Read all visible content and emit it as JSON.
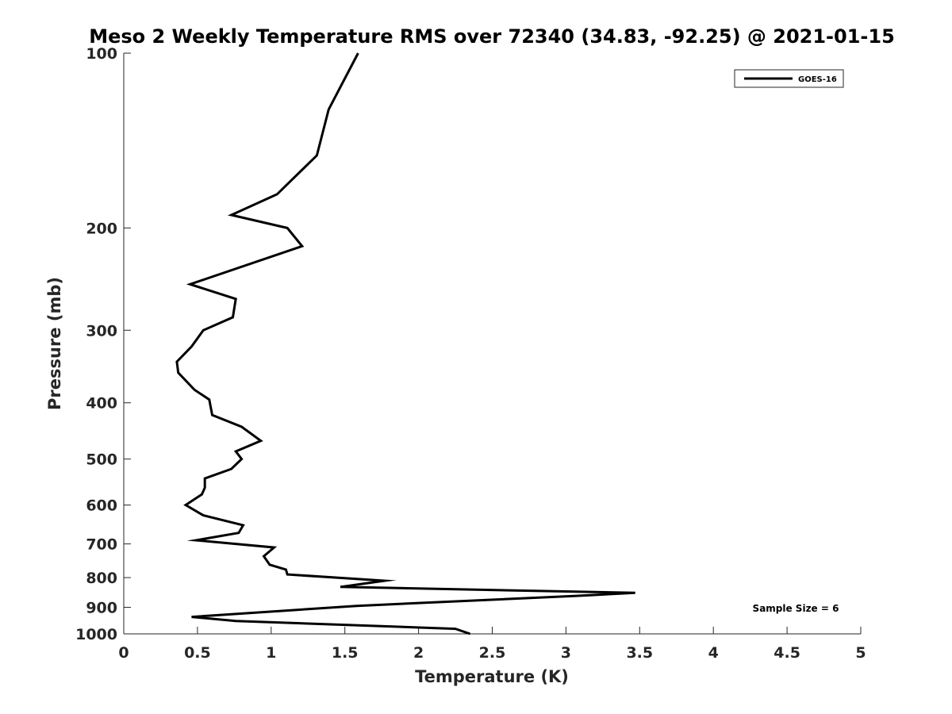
{
  "chart_data": {
    "type": "line",
    "title": "Meso 2 Weekly Temperature RMS over 72340 (34.83, -92.25) @ 2021-01-15",
    "xlabel": "Temperature (K)",
    "ylabel": "Pressure (mb)",
    "xlim": [
      0,
      5
    ],
    "ylim": [
      100,
      1000
    ],
    "yscale": "log",
    "y_reversed": true,
    "grid": false,
    "legend_position": "top-right",
    "x_ticks": [
      "0",
      "0.5",
      "1",
      "1.5",
      "2",
      "2.5",
      "3",
      "3.5",
      "4",
      "4.5",
      "5"
    ],
    "y_ticks": [
      "100",
      "200",
      "300",
      "400",
      "500",
      "600",
      "700",
      "800",
      "900",
      "1000"
    ],
    "annotation": "Sample Size = 6",
    "series": [
      {
        "name": "GOES-16",
        "color": "#000000",
        "x": [
          1.59,
          1.39,
          1.31,
          1.04,
          0.73,
          1.11,
          1.21,
          0.45,
          0.76,
          0.74,
          0.54,
          0.46,
          0.36,
          0.37,
          0.48,
          0.58,
          0.6,
          0.8,
          0.93,
          0.76,
          0.8,
          0.73,
          0.55,
          0.55,
          0.53,
          0.42,
          0.54,
          0.81,
          0.78,
          0.49,
          1.02,
          0.95,
          0.99,
          1.1,
          1.11,
          1.77,
          1.47,
          3.47,
          3.07,
          1.58,
          0.46,
          0.76,
          2.25,
          2.35
        ],
        "y": [
          100,
          125,
          150,
          175,
          190,
          200,
          215,
          250,
          265,
          285,
          300,
          320,
          340,
          355,
          380,
          395,
          420,
          440,
          465,
          485,
          500,
          520,
          540,
          560,
          575,
          600,
          625,
          650,
          670,
          690,
          710,
          735,
          760,
          775,
          790,
          810,
          830,
          850,
          860,
          895,
          935,
          950,
          980,
          1000
        ]
      }
    ]
  }
}
